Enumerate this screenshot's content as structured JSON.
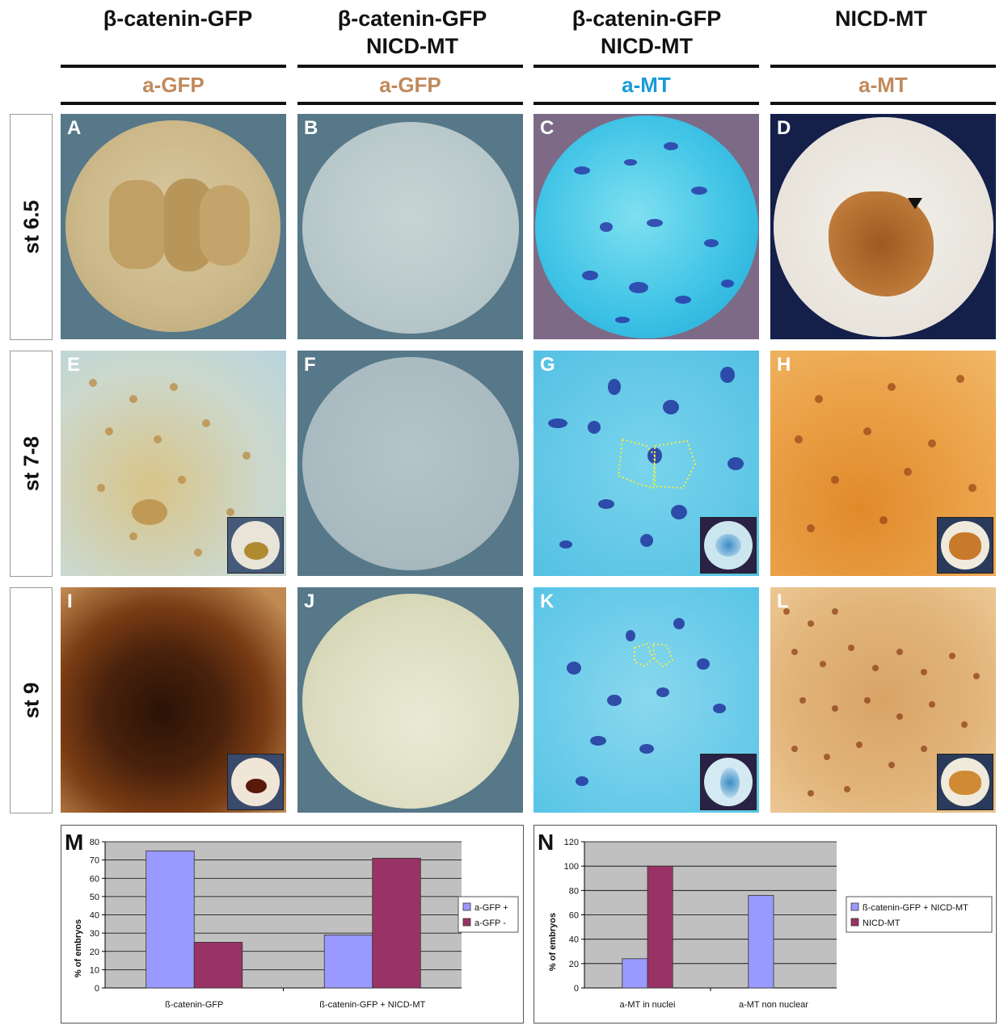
{
  "columns": [
    {
      "line1": "β-catenin-GFP",
      "line2": "",
      "antibody": "a-GFP"
    },
    {
      "line1": "β-catenin-GFP",
      "line2": "NICD-MT",
      "antibody": "a-GFP"
    },
    {
      "line1": "β-catenin-GFP",
      "line2": "NICD-MT",
      "antibody": "a-MT"
    },
    {
      "line1": "NICD-MT",
      "line2": "",
      "antibody": "a-MT"
    }
  ],
  "rows": [
    "st 6.5",
    "st 7-8",
    "st 9"
  ],
  "panels": [
    "A",
    "B",
    "C",
    "D",
    "E",
    "F",
    "G",
    "H",
    "I",
    "J",
    "K",
    "L"
  ],
  "colors": {
    "brown_label": "#c08a5c",
    "blue_label": "#1a9ad8",
    "series_lavender": "#9999ff",
    "series_maroon": "#993366",
    "plot_bg": "#c0c0c0"
  },
  "chart_data": [
    {
      "panel": "M",
      "type": "bar",
      "categories": [
        "ß-catenin-GFP",
        "ß-catenin-GFP + NICD-MT"
      ],
      "series": [
        {
          "name": "a-GFP +",
          "values": [
            75,
            29
          ]
        },
        {
          "name": "a-GFP -",
          "values": [
            25,
            71
          ]
        }
      ],
      "ylabel": "% of embryos",
      "ylim": [
        0,
        80
      ],
      "yticks": [
        0,
        10,
        20,
        30,
        40,
        50,
        60,
        70,
        80
      ],
      "grid": true,
      "legend": "right"
    },
    {
      "panel": "N",
      "type": "bar",
      "categories": [
        "a-MT in nuclei",
        "a-MT non nuclear"
      ],
      "series": [
        {
          "name": "ß-catenin-GFP + NICD-MT",
          "values": [
            24,
            76
          ]
        },
        {
          "name": "NICD-MT",
          "values": [
            100,
            0
          ]
        }
      ],
      "ylabel": "% of embryos",
      "ylim": [
        0,
        120
      ],
      "yticks": [
        0,
        20,
        40,
        60,
        80,
        100,
        120
      ],
      "grid": true,
      "legend": "right"
    }
  ]
}
